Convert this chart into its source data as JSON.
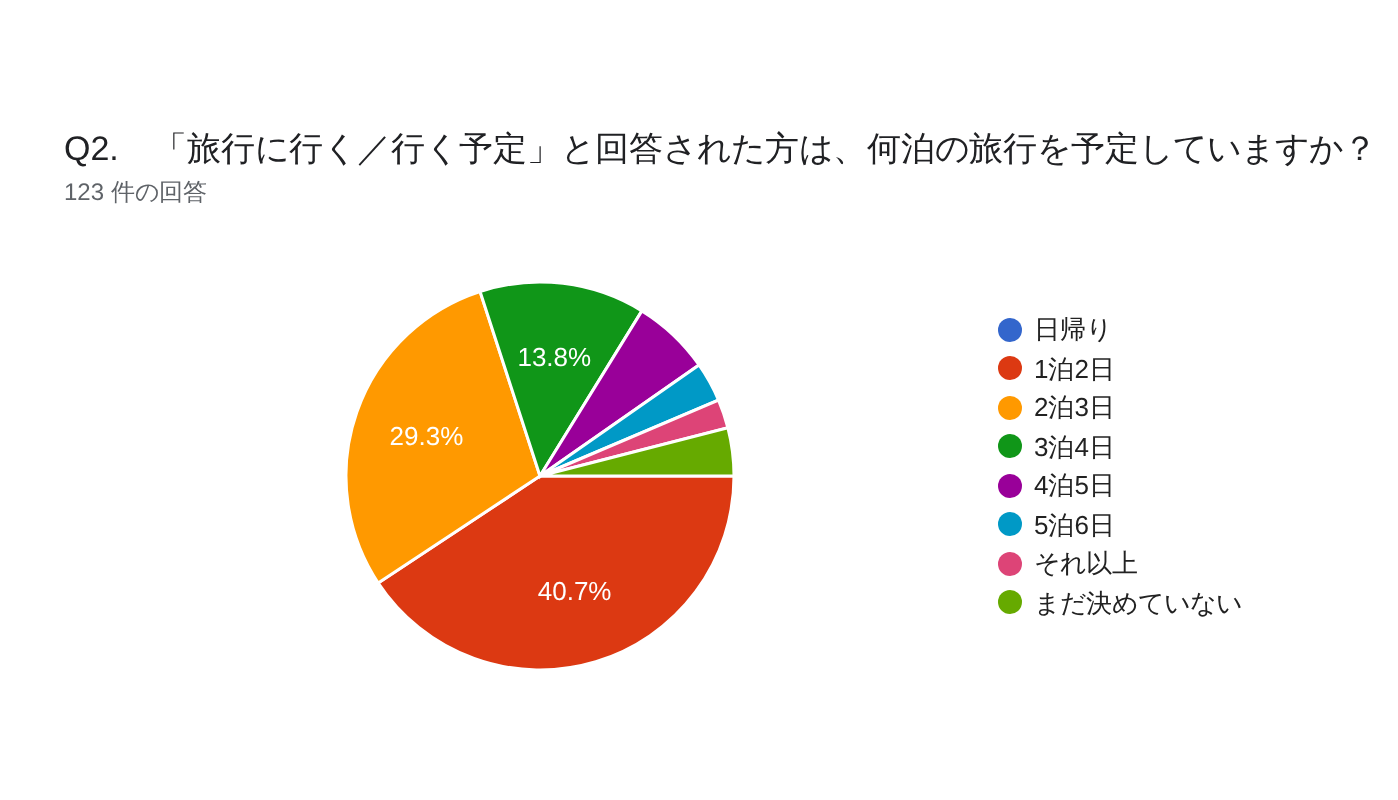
{
  "chart_data": {
    "type": "pie",
    "title": "Q2.　「旅行に行く／行く予定」と回答された方は、何泊の旅行を予定していますか？",
    "subtitle": "123 件の回答",
    "categories": [
      "日帰り",
      "1泊2日",
      "2泊3日",
      "3泊4日",
      "4泊5日",
      "5泊6日",
      "それ以上",
      "まだ決めていない"
    ],
    "values": [
      0,
      40.7,
      29.3,
      13.8,
      6.5,
      3.3,
      2.4,
      4.0
    ],
    "colors": [
      "#3366cc",
      "#dc3912",
      "#ff9900",
      "#109618",
      "#990099",
      "#0099c6",
      "#dd4477",
      "#66aa00"
    ],
    "value_labels": [
      null,
      "40.7%",
      "29.3%",
      "13.8%",
      null,
      null,
      null,
      null
    ],
    "legend": "right"
  }
}
